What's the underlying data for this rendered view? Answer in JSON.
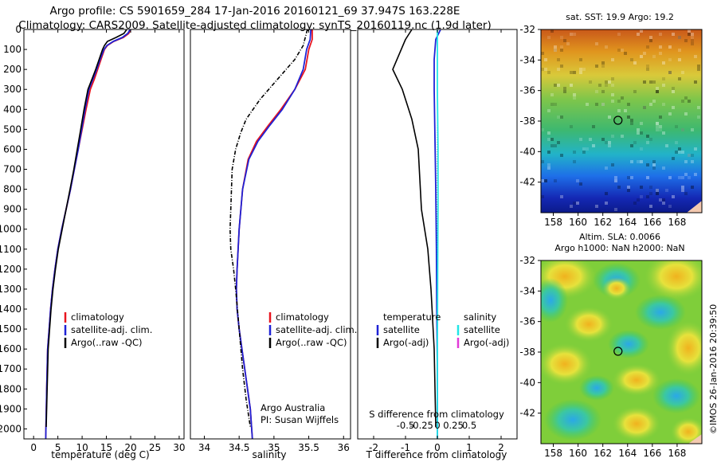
{
  "titles": {
    "line1": "Argo profile: CS 5901659_284 17-Jan-2016 20160121_69 37.947S 163.228E",
    "line2": "Climatology: CARS2009. Satellite-adjusted climatology: synTS_20160119.nc (1.9d later)"
  },
  "credit": "©IMOS 26-Jan-2016 20:39:50",
  "colors": {
    "climatology": "#e8141e",
    "satellite": "#1e22d6",
    "argo": "#000000",
    "satellite_s": "#22e6e6",
    "argo_adj_s": "#e23ad8"
  },
  "chart_data": [
    {
      "type": "line",
      "xlabel": "temperature (deg C)",
      "ylabel": "",
      "xlim": [
        -2,
        31
      ],
      "ylim": [
        2050,
        0
      ],
      "xticks": [
        0,
        5,
        10,
        15,
        20,
        25,
        30
      ],
      "yticks": [
        0,
        100,
        200,
        300,
        400,
        500,
        600,
        700,
        800,
        900,
        1000,
        1100,
        1200,
        1300,
        1400,
        1500,
        1600,
        1700,
        1800,
        1900,
        2000
      ],
      "legend": [
        "climatology",
        "satellite-adj. clim.",
        "Argo(..raw -QC)"
      ],
      "series": [
        {
          "name": "climatology",
          "color": "climatology",
          "x": [
            20.0,
            19.6,
            18.5,
            16.5,
            15.2,
            14.6,
            13.9,
            13.2,
            12.5,
            11.7,
            10.8,
            10.0,
            9.2,
            8.4,
            7.6,
            6.7,
            5.8,
            5.0,
            4.4,
            3.9,
            3.5,
            3.2,
            2.9,
            2.7,
            2.5
          ],
          "y": [
            0,
            20,
            40,
            60,
            80,
            100,
            150,
            200,
            250,
            300,
            400,
            500,
            600,
            700,
            800,
            900,
            1000,
            1100,
            1200,
            1300,
            1400,
            1500,
            1600,
            1800,
            2050
          ]
        },
        {
          "name": "satellite-adj. clim.",
          "color": "satellite",
          "x": [
            19.9,
            19.4,
            18.3,
            16.4,
            15.1,
            14.5,
            13.7,
            13.0,
            12.2,
            11.4,
            10.6,
            9.9,
            9.2,
            8.4,
            7.6,
            6.7,
            5.8,
            5.0,
            4.4,
            3.9,
            3.5,
            3.2,
            2.9,
            2.7,
            2.5
          ],
          "y": [
            0,
            20,
            40,
            60,
            80,
            100,
            150,
            200,
            250,
            300,
            400,
            500,
            600,
            700,
            800,
            900,
            1000,
            1100,
            1200,
            1300,
            1400,
            1500,
            1600,
            1800,
            2050
          ]
        },
        {
          "name": "Argo(..raw -QC)",
          "color": "argo",
          "x": [
            19.2,
            18.6,
            17.0,
            15.2,
            14.6,
            14.2,
            13.5,
            12.8,
            12.0,
            11.2,
            10.4,
            9.7,
            9.0,
            8.3,
            7.5,
            6.7,
            5.9,
            5.1,
            4.5,
            4.0,
            3.6,
            3.3,
            3.0,
            2.8,
            2.6
          ],
          "y": [
            0,
            20,
            40,
            60,
            80,
            100,
            150,
            200,
            250,
            300,
            400,
            500,
            600,
            700,
            800,
            900,
            1000,
            1100,
            1200,
            1300,
            1400,
            1500,
            1600,
            1800,
            1990
          ]
        }
      ]
    },
    {
      "type": "line",
      "xlabel": "salinity",
      "ylabel": "",
      "xlim": [
        33.8,
        36.1
      ],
      "ylim": [
        2050,
        0
      ],
      "xticks": [
        34,
        34.5,
        35,
        35.5,
        36
      ],
      "legend": [
        "climatology",
        "satellite-adj. clim.",
        "Argo(..raw -QC)"
      ],
      "annotation": [
        "Argo Australia",
        "PI: Susan Wijffels"
      ],
      "series": [
        {
          "name": "climatology",
          "color": "climatology",
          "x": [
            35.55,
            35.55,
            35.5,
            35.45,
            35.3,
            35.1,
            34.92,
            34.75,
            34.63,
            34.55,
            34.5,
            34.47,
            34.46,
            34.47,
            34.5,
            34.54,
            34.58,
            34.62,
            34.66,
            34.69
          ],
          "y": [
            0,
            50,
            100,
            200,
            300,
            400,
            480,
            560,
            650,
            800,
            1000,
            1200,
            1300,
            1400,
            1500,
            1600,
            1700,
            1800,
            1900,
            2050
          ]
        },
        {
          "name": "satellite-adj. clim.",
          "color": "satellite",
          "x": [
            35.53,
            35.52,
            35.47,
            35.42,
            35.3,
            35.12,
            34.94,
            34.77,
            34.64,
            34.55,
            34.5,
            34.47,
            34.46,
            34.47,
            34.5,
            34.54,
            34.58,
            34.62,
            34.66,
            34.69
          ],
          "y": [
            0,
            50,
            100,
            200,
            300,
            400,
            480,
            560,
            650,
            800,
            1000,
            1200,
            1300,
            1400,
            1500,
            1600,
            1700,
            1800,
            1900,
            2050
          ]
        },
        {
          "name": "Argo(..raw -QC)",
          "color": "argo",
          "x": [
            35.48,
            35.42,
            35.3,
            35.05,
            34.8,
            34.6,
            34.52,
            34.45,
            34.4,
            34.38,
            34.37,
            34.38,
            34.42,
            34.45,
            34.5,
            34.55,
            34.6,
            34.66
          ],
          "y": [
            0,
            80,
            150,
            250,
            350,
            450,
            520,
            600,
            700,
            900,
            1000,
            1100,
            1200,
            1300,
            1500,
            1700,
            1850,
            1990
          ]
        }
      ]
    },
    {
      "type": "line",
      "xlabel": "T difference from climatology",
      "xlabel_top": "S difference from climatology",
      "ylabel": "",
      "xlim": [
        -2.5,
        2.5
      ],
      "ylim": [
        2050,
        0
      ],
      "xticks": [
        -2,
        -1,
        0,
        1,
        2
      ],
      "xticks_s": [
        "-0.5",
        "-0.25",
        "0",
        "0.25",
        "0.5"
      ],
      "legend": {
        "temperature": [
          "satellite",
          "Argo(-adj)"
        ],
        "salinity": [
          "satellite",
          "Argo(-adj)"
        ]
      },
      "legend_headers": [
        "temperature",
        "salinity"
      ],
      "series": [
        {
          "name": "satellite",
          "group": "temperature",
          "color": "satellite",
          "x": [
            0.1,
            -0.05,
            -0.1,
            -0.1,
            -0.08,
            -0.05,
            -0.03,
            -0.02,
            0.0,
            0.0
          ],
          "y": [
            0,
            50,
            150,
            300,
            500,
            800,
            1100,
            1400,
            1700,
            2050
          ]
        },
        {
          "name": "Argo(-adj)",
          "group": "temperature",
          "color": "argo",
          "x": [
            -0.8,
            -1.0,
            -1.4,
            -1.1,
            -0.8,
            -0.6,
            -0.5,
            -0.3,
            -0.2,
            -0.1,
            -0.05
          ],
          "y": [
            0,
            50,
            200,
            300,
            450,
            600,
            900,
            1100,
            1300,
            1600,
            1990
          ]
        },
        {
          "name": "satellite",
          "group": "salinity",
          "color": "satellite_s",
          "x": [
            0.0,
            0.0,
            0.0,
            0.02,
            0.02,
            0.01,
            0.0,
            0.0
          ],
          "y": [
            0,
            100,
            300,
            600,
            900,
            1200,
            1600,
            2050
          ]
        },
        {
          "name": "Argo(-adj)",
          "group": "salinity",
          "color": "argo_adj_s",
          "x": [],
          "y": []
        }
      ]
    },
    {
      "type": "heatmap",
      "title": "sat. SST: 19.9 Argo: 19.2",
      "xlim": [
        157,
        170
      ],
      "ylim": [
        -44,
        -32
      ],
      "xticks": [
        158,
        160,
        162,
        164,
        166,
        168
      ],
      "yticks": [
        -32,
        -34,
        -36,
        -38,
        -40,
        -42
      ],
      "marker": {
        "lon": 163.228,
        "lat": -37.947
      }
    },
    {
      "type": "heatmap",
      "title": [
        "Altim. SLA: 0.0066",
        "Argo h1000: NaN h2000: NaN"
      ],
      "xlim": [
        157,
        170
      ],
      "ylim": [
        -44,
        -32
      ],
      "xticks": [
        158,
        160,
        162,
        164,
        166,
        168
      ],
      "yticks": [
        -32,
        -34,
        -36,
        -38,
        -40,
        -42
      ],
      "marker": {
        "lon": 163.228,
        "lat": -37.947
      }
    }
  ]
}
